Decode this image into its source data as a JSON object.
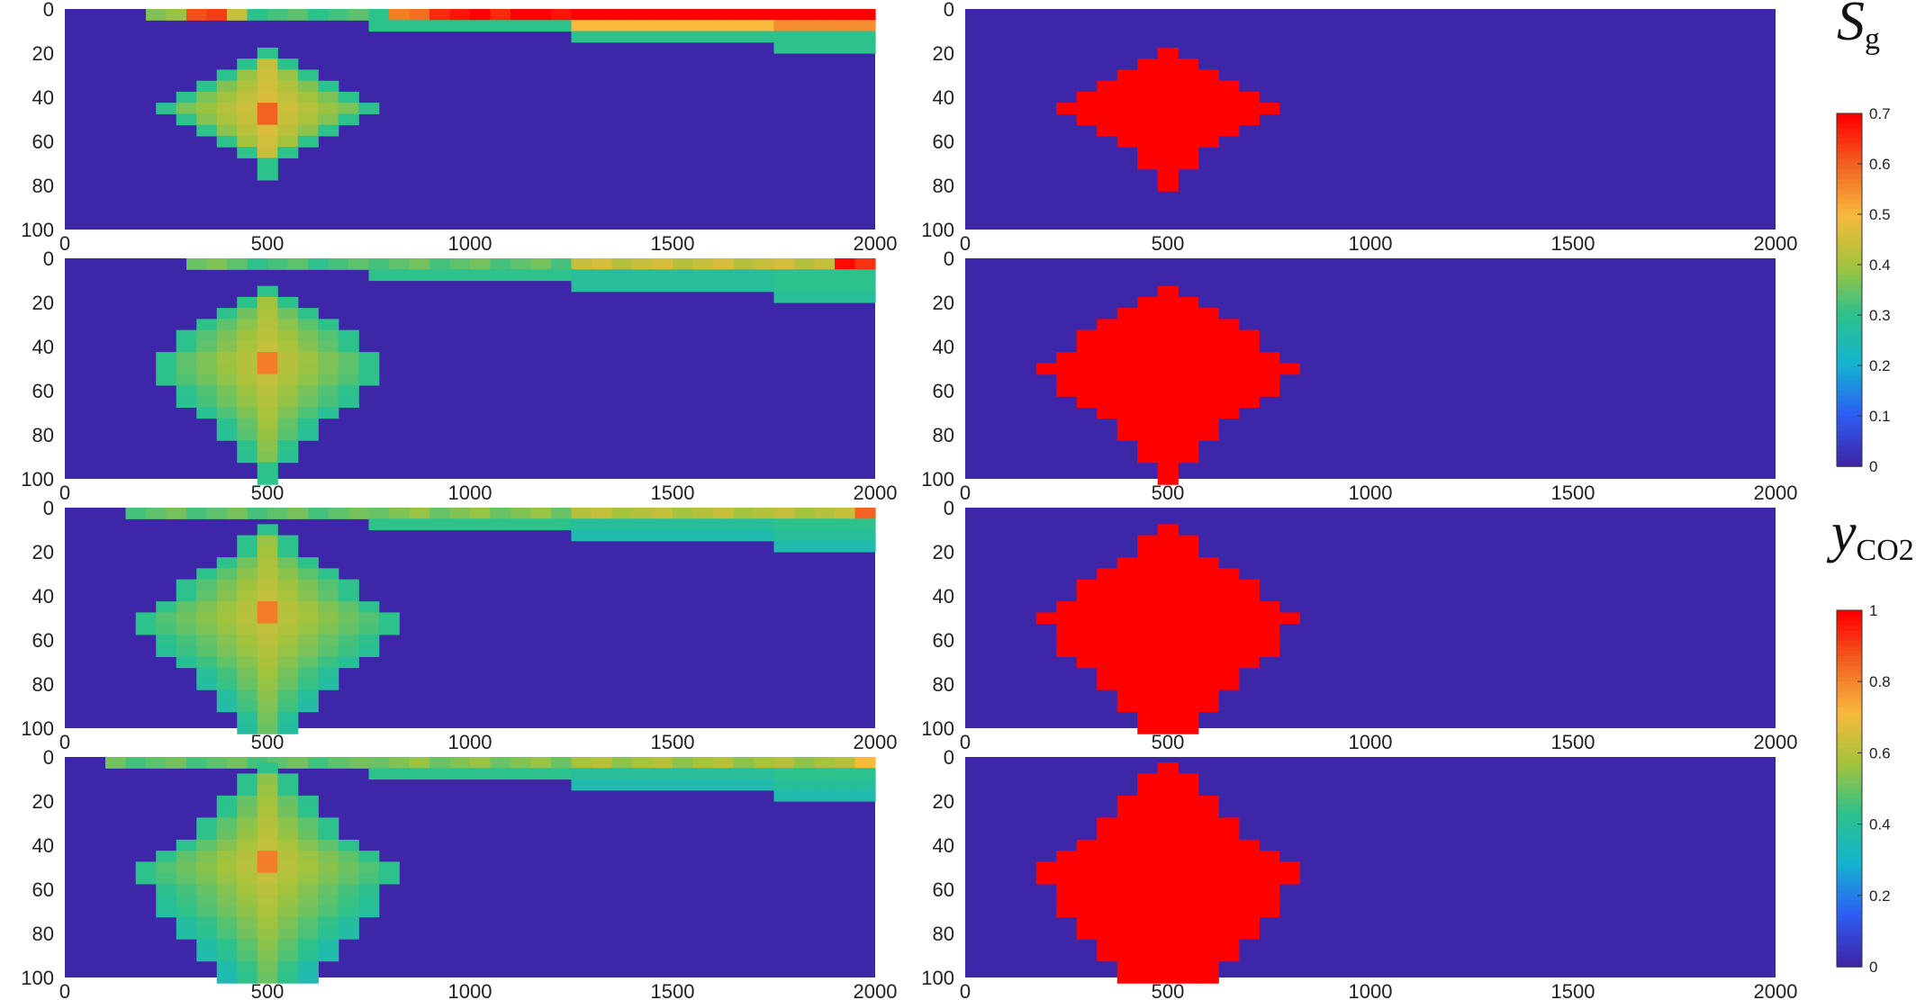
{
  "chart_data": {
    "type": "heatmap",
    "description_grid": "8 panels in a 4x2 grid; x axis 0-2000, y axis 0-100 (depth increasing downward)",
    "x_ticks": [
      "0",
      "500",
      "1000",
      "1500",
      "2000"
    ],
    "y_ticks": [
      "0",
      "20",
      "40",
      "60",
      "80",
      "100"
    ],
    "xlim": [
      0,
      2000
    ],
    "ylim": [
      100,
      0
    ],
    "colorbars": [
      {
        "name_main": "S",
        "name_sub": "g",
        "range": [
          0,
          0.7
        ],
        "ticks": [
          "0",
          "0.1",
          "0.2",
          "0.3",
          "0.4",
          "0.5",
          "0.6",
          "0.7"
        ]
      },
      {
        "name_main": "y",
        "name_sub": "CO2",
        "range": [
          0,
          1
        ],
        "ticks": [
          "0",
          "0.2",
          "0.4",
          "0.6",
          "0.8",
          "1"
        ]
      }
    ],
    "colormap": [
      "#3e26a8",
      "#2d5ef5",
      "#13b4d0",
      "#2dc18b",
      "#a5c33c",
      "#f7ba3c",
      "#f26322",
      "#ff0000"
    ],
    "background_value": 0,
    "plume_center_x": 500,
    "plume_center_y": 47,
    "rows": [
      {
        "left_sg": {
          "plume_half_widths": [
            [
              20,
              0
            ],
            [
              25,
              1
            ],
            [
              30,
              2
            ],
            [
              35,
              3
            ],
            [
              40,
              4
            ],
            [
              45,
              5
            ],
            [
              50,
              4
            ],
            [
              55,
              3
            ],
            [
              60,
              2
            ],
            [
              65,
              1
            ],
            [
              70,
              0
            ],
            [
              75,
              0
            ]
          ],
          "plume_peak": 0.48,
          "top_layer": [
            [
              0,
              200,
              0
            ],
            [
              200,
              300,
              0.35
            ],
            [
              300,
              400,
              0.62
            ],
            [
              400,
              450,
              0.4
            ],
            [
              450,
              700,
              0.3
            ],
            [
              700,
              800,
              0.3
            ],
            [
              800,
              900,
              0.55
            ],
            [
              900,
              1100,
              0.66
            ],
            [
              1100,
              1250,
              0.68
            ],
            [
              1250,
              2000,
              0.7
            ]
          ],
          "second_layer": [
            [
              750,
              1250,
              0.3
            ],
            [
              1250,
              1750,
              0.5
            ],
            [
              1750,
              2000,
              0.55
            ]
          ],
          "third_layer": [
            [
              1250,
              2000,
              0.3
            ]
          ],
          "fourth_layer": [
            [
              1750,
              2000,
              0.3
            ]
          ]
        },
        "right_y": {
          "plume_half_widths": [
            [
              20,
              0
            ],
            [
              25,
              1
            ],
            [
              30,
              2
            ],
            [
              35,
              3
            ],
            [
              40,
              4
            ],
            [
              45,
              5
            ],
            [
              50,
              4
            ],
            [
              55,
              3
            ],
            [
              60,
              2
            ],
            [
              65,
              1
            ],
            [
              70,
              1
            ],
            [
              75,
              0
            ],
            [
              80,
              0
            ]
          ]
        },
        "top_band_right": false
      },
      {
        "left_sg": {
          "plume_half_widths": [
            [
              15,
              0
            ],
            [
              20,
              1
            ],
            [
              25,
              2
            ],
            [
              30,
              3
            ],
            [
              35,
              4
            ],
            [
              40,
              4
            ],
            [
              45,
              5
            ],
            [
              50,
              5
            ],
            [
              55,
              5
            ],
            [
              60,
              4
            ],
            [
              65,
              4
            ],
            [
              70,
              3
            ],
            [
              75,
              2
            ],
            [
              80,
              2
            ],
            [
              85,
              1
            ],
            [
              90,
              1
            ],
            [
              95,
              0
            ],
            [
              100,
              0
            ]
          ],
          "plume_peak": 0.45,
          "top_layer": [
            [
              0,
              300,
              0
            ],
            [
              300,
              400,
              0.35
            ],
            [
              400,
              750,
              0.3
            ],
            [
              750,
              1250,
              0.32
            ],
            [
              1250,
              1900,
              0.42
            ],
            [
              1900,
              2000,
              0.65
            ]
          ],
          "second_layer": [
            [
              750,
              1250,
              0.3
            ],
            [
              1250,
              1750,
              0.28
            ],
            [
              1750,
              2000,
              0.3
            ]
          ],
          "third_layer": [
            [
              1250,
              1750,
              0.28
            ],
            [
              1750,
              2000,
              0.3
            ]
          ],
          "fourth_layer": [
            [
              1750,
              2000,
              0.28
            ]
          ]
        },
        "right_y": {
          "plume_half_widths": [
            [
              15,
              0
            ],
            [
              20,
              1
            ],
            [
              25,
              2
            ],
            [
              30,
              3
            ],
            [
              35,
              4
            ],
            [
              40,
              4
            ],
            [
              45,
              5
            ],
            [
              50,
              6
            ],
            [
              55,
              5
            ],
            [
              60,
              5
            ],
            [
              65,
              4
            ],
            [
              70,
              3
            ],
            [
              75,
              2
            ],
            [
              80,
              2
            ],
            [
              85,
              1
            ],
            [
              90,
              1
            ],
            [
              95,
              0
            ],
            [
              100,
              0
            ]
          ]
        }
      },
      {
        "left_sg": {
          "plume_half_widths": [
            [
              10,
              0
            ],
            [
              15,
              1
            ],
            [
              20,
              1
            ],
            [
              25,
              2
            ],
            [
              30,
              3
            ],
            [
              35,
              4
            ],
            [
              40,
              4
            ],
            [
              45,
              5
            ],
            [
              50,
              6
            ],
            [
              55,
              6
            ],
            [
              60,
              5
            ],
            [
              65,
              5
            ],
            [
              70,
              4
            ],
            [
              75,
              3
            ],
            [
              80,
              3
            ],
            [
              85,
              2
            ],
            [
              90,
              2
            ],
            [
              95,
              1
            ],
            [
              100,
              1
            ]
          ],
          "plume_peak": 0.45,
          "top_layer": [
            [
              0,
              150,
              0
            ],
            [
              150,
              750,
              0.32
            ],
            [
              750,
              1250,
              0.35
            ],
            [
              1250,
              1950,
              0.4
            ],
            [
              1950,
              2000,
              0.6
            ]
          ],
          "second_layer": [
            [
              750,
              1250,
              0.3
            ],
            [
              1250,
              1750,
              0.28
            ],
            [
              1750,
              2000,
              0.3
            ]
          ],
          "third_layer": [
            [
              1250,
              1750,
              0.25
            ],
            [
              1750,
              2000,
              0.28
            ]
          ],
          "fourth_layer": [
            [
              1750,
              2000,
              0.25
            ]
          ]
        },
        "right_y": {
          "plume_half_widths": [
            [
              10,
              0
            ],
            [
              15,
              1
            ],
            [
              20,
              1
            ],
            [
              25,
              2
            ],
            [
              30,
              3
            ],
            [
              35,
              4
            ],
            [
              40,
              4
            ],
            [
              45,
              5
            ],
            [
              50,
              6
            ],
            [
              55,
              5
            ],
            [
              60,
              5
            ],
            [
              65,
              5
            ],
            [
              70,
              4
            ],
            [
              75,
              3
            ],
            [
              80,
              3
            ],
            [
              85,
              2
            ],
            [
              90,
              2
            ],
            [
              95,
              1
            ],
            [
              100,
              1
            ]
          ]
        }
      },
      {
        "left_sg": {
          "plume_half_widths": [
            [
              5,
              0
            ],
            [
              10,
              1
            ],
            [
              15,
              1
            ],
            [
              20,
              2
            ],
            [
              25,
              2
            ],
            [
              30,
              3
            ],
            [
              35,
              3
            ],
            [
              40,
              4
            ],
            [
              45,
              5
            ],
            [
              50,
              6
            ],
            [
              55,
              6
            ],
            [
              60,
              5
            ],
            [
              65,
              5
            ],
            [
              70,
              5
            ],
            [
              75,
              4
            ],
            [
              80,
              4
            ],
            [
              85,
              3
            ],
            [
              90,
              3
            ],
            [
              95,
              2
            ],
            [
              100,
              2
            ]
          ],
          "plume_peak": 0.45,
          "top_layer": [
            [
              0,
              100,
              0
            ],
            [
              100,
              750,
              0.32
            ],
            [
              750,
              1250,
              0.35
            ],
            [
              1250,
              1950,
              0.38
            ],
            [
              1950,
              2000,
              0.5
            ]
          ],
          "second_layer": [
            [
              750,
              1250,
              0.3
            ],
            [
              1250,
              1750,
              0.28
            ],
            [
              1750,
              2000,
              0.3
            ]
          ],
          "third_layer": [
            [
              1250,
              1750,
              0.25
            ],
            [
              1750,
              2000,
              0.28
            ]
          ],
          "fourth_layer": [
            [
              1750,
              2000,
              0.25
            ]
          ]
        },
        "right_y": {
          "plume_half_widths": [
            [
              5,
              0
            ],
            [
              10,
              1
            ],
            [
              15,
              1
            ],
            [
              20,
              2
            ],
            [
              25,
              2
            ],
            [
              30,
              3
            ],
            [
              35,
              3
            ],
            [
              40,
              4
            ],
            [
              45,
              5
            ],
            [
              50,
              6
            ],
            [
              55,
              6
            ],
            [
              60,
              5
            ],
            [
              65,
              5
            ],
            [
              70,
              5
            ],
            [
              75,
              4
            ],
            [
              80,
              4
            ],
            [
              85,
              3
            ],
            [
              90,
              3
            ],
            [
              95,
              2
            ],
            [
              100,
              2
            ]
          ]
        }
      }
    ]
  }
}
